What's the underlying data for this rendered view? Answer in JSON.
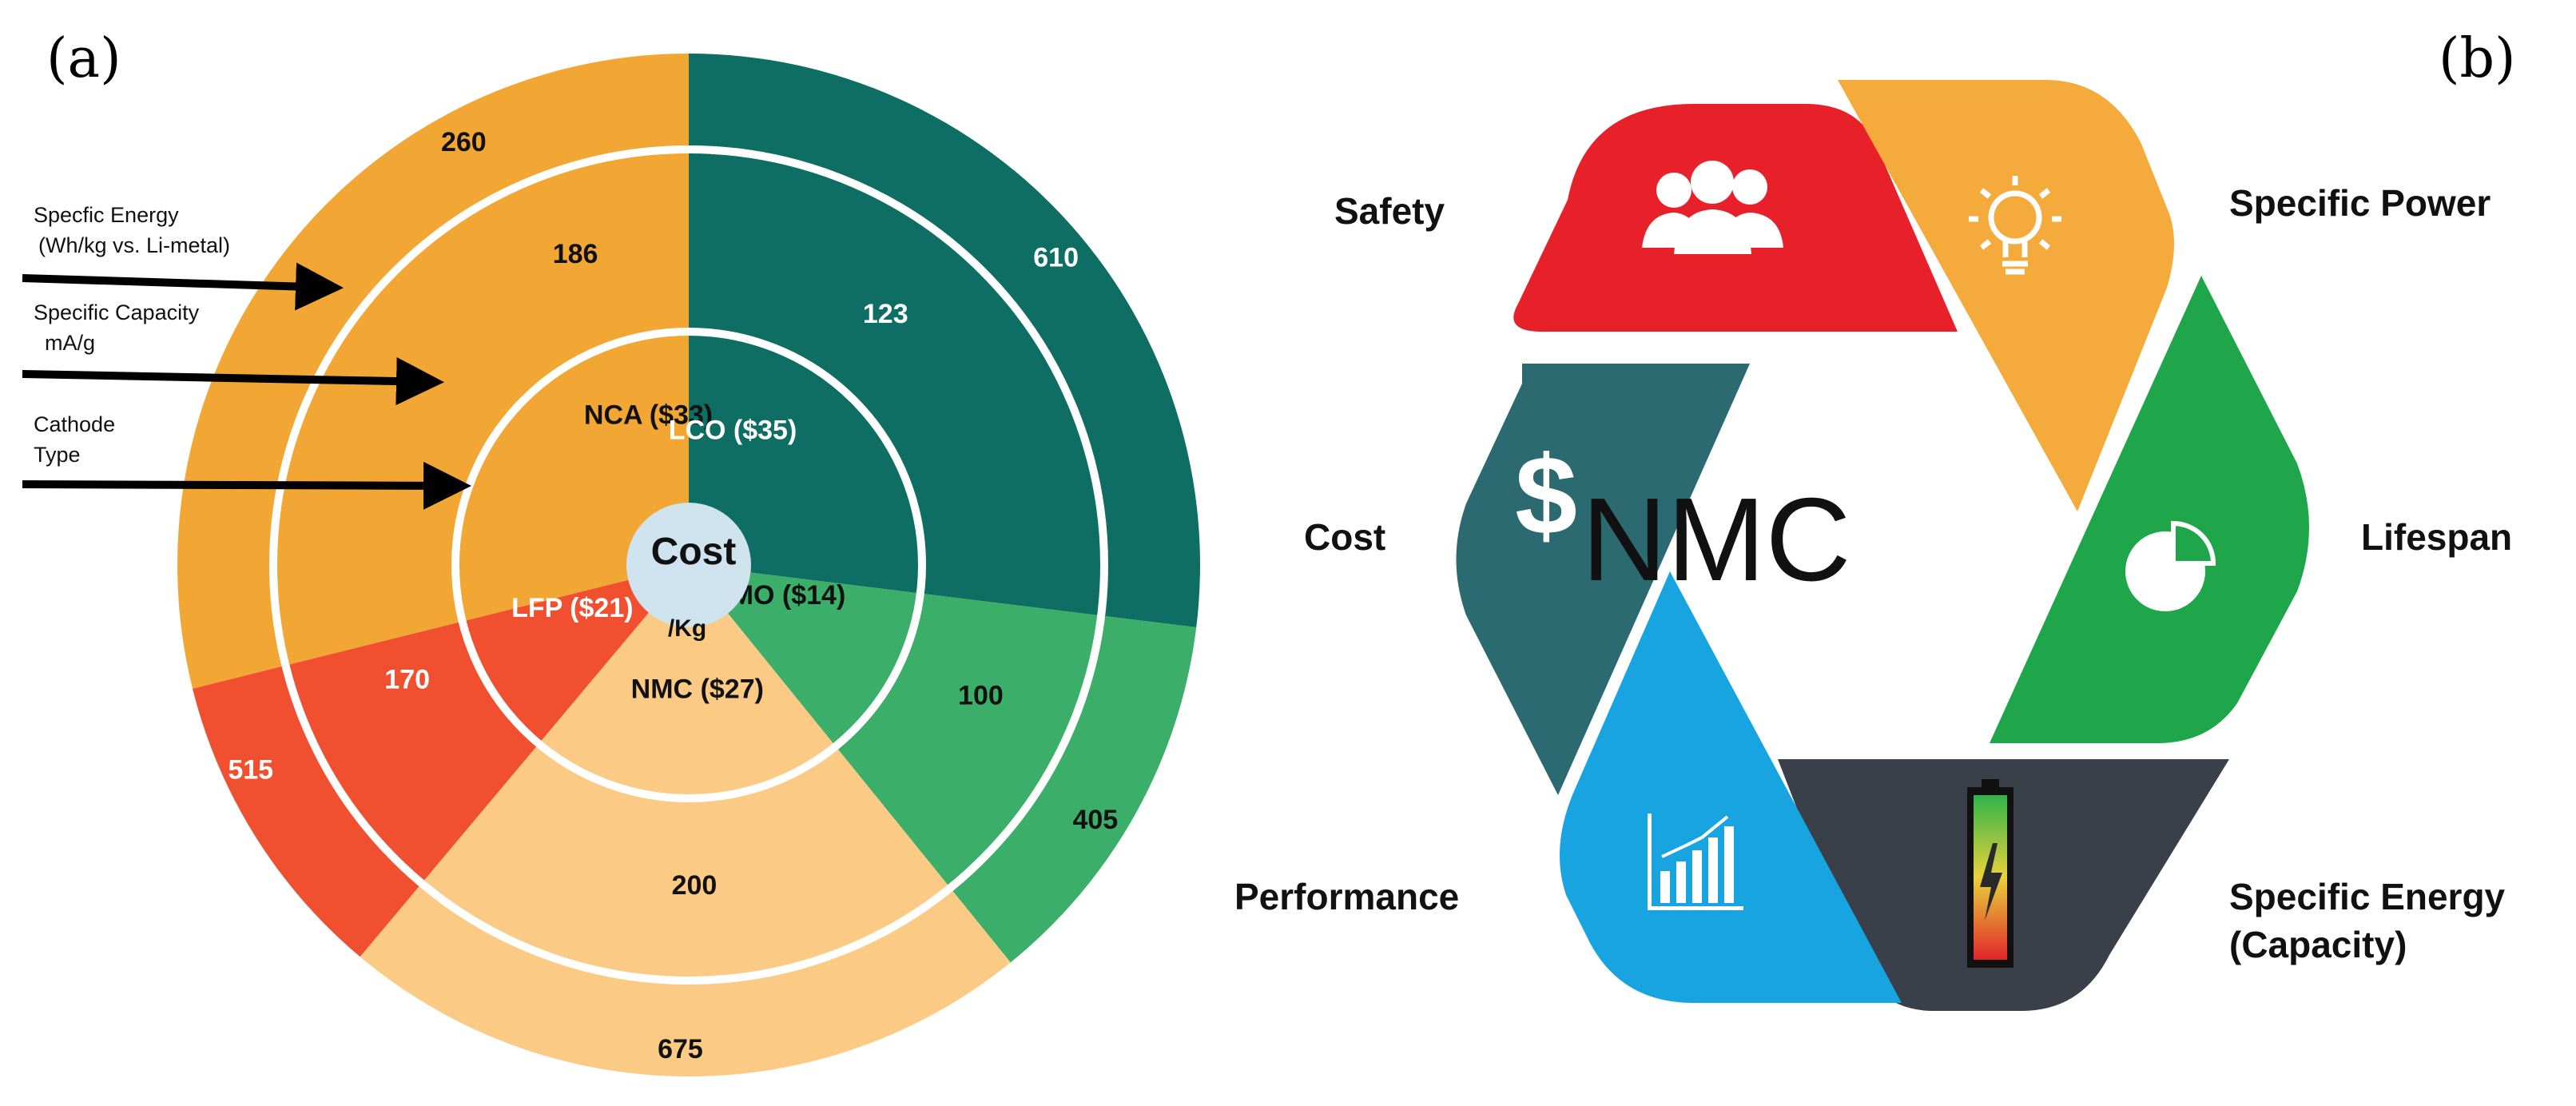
{
  "panel_a": {
    "letter": "(a)",
    "center_label_1": "Cost",
    "center_label_2": "/Kg",
    "legend": {
      "energy_1": "Specfic Energy",
      "energy_2": "(Wh/kg vs. Li-metal)",
      "capacity_1": "Specific Capacity",
      "capacity_2": "mA/g",
      "cathode_1": "Cathode",
      "cathode_2": "Type"
    },
    "colors": {
      "NCA": "#F2A634",
      "LCO": "#0E6E63",
      "LMO": "#3BAE6A",
      "NMC": "#FBCB86",
      "LFP": "#F0502F",
      "center": "#CFE3EE",
      "ring": "#FFFFFF"
    },
    "segments": [
      {
        "key": "NCA",
        "type_label": "NCA ($33)",
        "capacity": "186",
        "energy": "260"
      },
      {
        "key": "LCO",
        "type_label": "LCO ($35)",
        "capacity": "123",
        "energy": "610"
      },
      {
        "key": "LMO",
        "type_label": "LMO ($14)",
        "capacity": "100",
        "energy": "405"
      },
      {
        "key": "NMC",
        "type_label": "NMC ($27)",
        "capacity": "200",
        "energy": "675"
      },
      {
        "key": "LFP",
        "type_label": "LFP ($21)",
        "capacity": "170",
        "energy": "515"
      }
    ]
  },
  "panel_b": {
    "letter": "(b)",
    "center": "NMC",
    "colors": {
      "safety": "#E8202A",
      "power": "#F5AA3C",
      "lifespan": "#1FA64B",
      "energy": "#3A4049",
      "performance": "#17A4E0",
      "cost": "#2B6A70"
    },
    "labels": {
      "safety": "Safety",
      "power": "Specific Power",
      "lifespan": "Lifespan",
      "energy_1": "Specific Energy",
      "energy_2": "(Capacity)",
      "performance": "Performance",
      "cost": "Cost"
    },
    "icons": {
      "safety": "people-icon",
      "power": "lightbulb-icon",
      "lifespan": "pie-chart-icon",
      "energy": "battery-icon",
      "performance": "bar-chart-icon",
      "cost": "dollar-icon"
    },
    "cost_symbol": "$"
  }
}
